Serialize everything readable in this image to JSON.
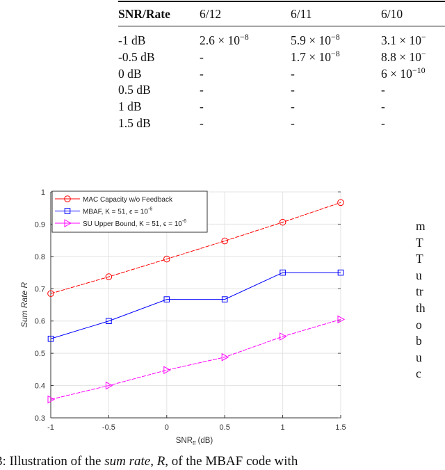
{
  "table": {
    "headers": [
      "SNR/Rate",
      "6/12",
      "6/11",
      "6/10"
    ],
    "rows": [
      {
        "snr": "-1 dB",
        "cells": [
          {
            "m": "2.6 × 10",
            "e": "−8"
          },
          {
            "m": "5.9 × 10",
            "e": "−8"
          },
          {
            "m": "3.1 × 10",
            "e": "−"
          }
        ]
      },
      {
        "snr": "-0.5 dB",
        "cells": [
          {
            "m": "-",
            "e": ""
          },
          {
            "m": "1.7 × 10",
            "e": "−8"
          },
          {
            "m": "8.8 × 10",
            "e": "−"
          }
        ]
      },
      {
        "snr": "0 dB",
        "cells": [
          {
            "m": "-",
            "e": ""
          },
          {
            "m": "-",
            "e": ""
          },
          {
            "m": "6 × 10",
            "e": "−10"
          }
        ]
      },
      {
        "snr": "0.5 dB",
        "cells": [
          {
            "m": "-",
            "e": ""
          },
          {
            "m": "-",
            "e": ""
          },
          {
            "m": "-",
            "e": ""
          }
        ]
      },
      {
        "snr": "1 dB",
        "cells": [
          {
            "m": "-",
            "e": ""
          },
          {
            "m": "-",
            "e": ""
          },
          {
            "m": "-",
            "e": ""
          }
        ]
      },
      {
        "snr": "1.5 dB",
        "cells": [
          {
            "m": "-",
            "e": ""
          },
          {
            "m": "-",
            "e": ""
          },
          {
            "m": "-",
            "e": ""
          }
        ]
      }
    ]
  },
  "chart_data": {
    "type": "line",
    "title": "",
    "xlabel": "SNR_ff (dB)",
    "xlabel_main": "SNR",
    "xlabel_sub": "ff",
    "xlabel_unit": " (dB)",
    "ylabel": "Sum Rate R",
    "x": [
      -1,
      -0.5,
      0,
      0.5,
      1,
      1.5
    ],
    "xticks": [
      "-1",
      "-0.5",
      "0",
      "0.5",
      "1",
      "1.5"
    ],
    "yticks": [
      "0.3",
      "0.4",
      "0.5",
      "0.6",
      "0.7",
      "0.8",
      "0.9",
      "1"
    ],
    "xlim": [
      -1,
      1.5
    ],
    "ylim": [
      0.3,
      1.0
    ],
    "grid": true,
    "legend_position": "upper left",
    "series": [
      {
        "name": "MAC Capacity w/o Feedback",
        "color": "#ff0000",
        "marker": "circle",
        "values": [
          0.685,
          0.737,
          0.792,
          0.848,
          0.906,
          0.967
        ]
      },
      {
        "name": "MBAF, K = 51, ε = 10^-6",
        "color": "#0000ff",
        "marker": "square",
        "values": [
          0.545,
          0.6,
          0.667,
          0.667,
          0.75,
          0.75
        ]
      },
      {
        "name": "SU Upper Bound, K = 51, ε = 10^-6",
        "color": "#ff00ff",
        "marker": "triangle-right",
        "values": [
          0.357,
          0.4,
          0.448,
          0.488,
          0.552,
          0.605
        ]
      }
    ],
    "legend_labels": [
      {
        "text": "MAC Capacity w/o Feedback",
        "sup": ""
      },
      {
        "text": "MBAF, K = 51, ϵ = 10",
        "sup": "-6"
      },
      {
        "text": "SU Upper Bound, K = 51, ϵ = 10",
        "sup": "-6"
      }
    ]
  },
  "side_text": [
    "m",
    "T",
    "T",
    "u",
    "tr",
    "th",
    "o",
    "b",
    "u",
    "c"
  ],
  "caption": {
    "prefix": "3: Illustration of the ",
    "italic1": "sum rate",
    "mid": ", ",
    "italic2": "R",
    "suffix": ", of the MBAF code with"
  }
}
